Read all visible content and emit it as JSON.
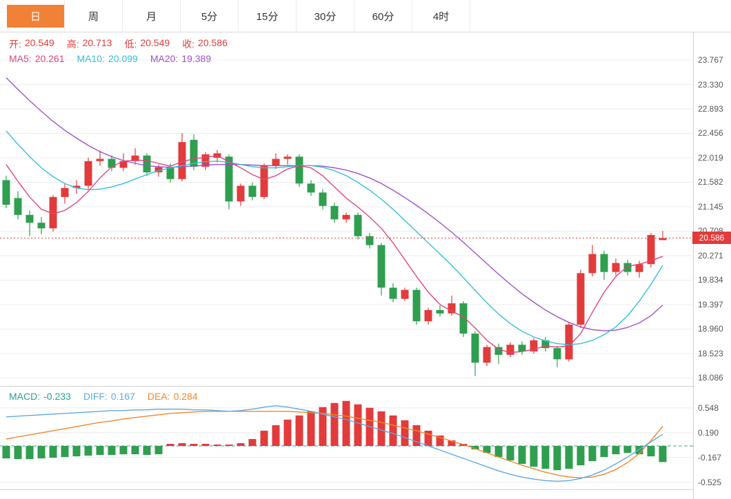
{
  "toolbar": {
    "tabs": [
      {
        "label": "日",
        "active": true
      },
      {
        "label": "周",
        "active": false
      },
      {
        "label": "月",
        "active": false
      },
      {
        "label": "5分",
        "active": false
      },
      {
        "label": "15分",
        "active": false
      },
      {
        "label": "30分",
        "active": false
      },
      {
        "label": "60分",
        "active": false
      },
      {
        "label": "4时",
        "active": false
      }
    ]
  },
  "main_legend": {
    "open_label": "开:",
    "open": "20.549",
    "high_label": "高:",
    "high": "20.713",
    "low_label": "低:",
    "low": "20.549",
    "close_label": "收:",
    "close": "20.586",
    "ma5_label": "MA5:",
    "ma5": "20.261",
    "ma10_label": "MA10:",
    "ma10": "20.099",
    "ma20_label": "MA20:",
    "ma20": "19.389"
  },
  "macd_legend": {
    "macd_label": "MACD:",
    "macd": "-0.233",
    "diff_label": "DIFF:",
    "diff": "0.167",
    "dea_label": "DEA:",
    "dea": "0.284"
  },
  "price_tag": "20.586",
  "colors": {
    "up": "#e23b3b",
    "down": "#2f9e4f",
    "ma5": "#e0457b",
    "ma10": "#33bfd8",
    "ma20": "#a052c8",
    "diff": "#5fa8e0",
    "dea": "#f2862b",
    "macd_text": "#26a08c",
    "accent": "#f08136",
    "grid": "#ececec",
    "frame": "#cfcfcf",
    "zero_line": "#3f9d9d",
    "axis_text": "#555555"
  },
  "chart_data": [
    {
      "type": "candlestick",
      "title": "daily-price-panel",
      "y_axis": {
        "ticks": [
          23.767,
          23.33,
          22.893,
          22.456,
          22.019,
          21.582,
          21.145,
          20.708,
          20.271,
          19.834,
          19.397,
          18.96,
          18.523,
          18.086
        ]
      },
      "current_price": 20.586,
      "last_ohlc": {
        "open": 20.549,
        "high": 20.713,
        "low": 20.549,
        "close": 20.586
      },
      "candles": [
        [
          21.62,
          21.7,
          21.12,
          21.18
        ],
        [
          21.3,
          21.42,
          20.92,
          21.0
        ],
        [
          21.0,
          21.08,
          20.62,
          20.86
        ],
        [
          20.86,
          20.96,
          20.65,
          20.76
        ],
        [
          20.76,
          21.35,
          20.7,
          21.32
        ],
        [
          21.32,
          21.55,
          21.2,
          21.48
        ],
        [
          21.48,
          21.62,
          21.38,
          21.52
        ],
        [
          21.52,
          22.02,
          21.46,
          21.96
        ],
        [
          21.96,
          22.15,
          21.88,
          22.0
        ],
        [
          22.0,
          22.06,
          21.78,
          21.84
        ],
        [
          21.84,
          22.1,
          21.78,
          21.96
        ],
        [
          21.96,
          22.19,
          21.9,
          22.06
        ],
        [
          22.06,
          22.1,
          21.7,
          21.76
        ],
        [
          21.76,
          21.9,
          21.68,
          21.85
        ],
        [
          21.85,
          21.92,
          21.58,
          21.64
        ],
        [
          21.64,
          22.46,
          21.6,
          22.3
        ],
        [
          22.34,
          22.44,
          21.8,
          21.86
        ],
        [
          21.86,
          22.12,
          21.8,
          22.08
        ],
        [
          22.02,
          22.16,
          21.94,
          22.1
        ],
        [
          22.04,
          22.08,
          21.1,
          21.24
        ],
        [
          21.24,
          21.56,
          21.16,
          21.52
        ],
        [
          21.52,
          21.58,
          21.26,
          21.32
        ],
        [
          21.32,
          21.92,
          21.28,
          21.88
        ],
        [
          21.88,
          22.1,
          21.82,
          22.0
        ],
        [
          22.0,
          22.08,
          21.9,
          22.04
        ],
        [
          22.04,
          22.08,
          21.5,
          21.56
        ],
        [
          21.56,
          21.62,
          21.34,
          21.4
        ],
        [
          21.4,
          21.46,
          21.1,
          21.16
        ],
        [
          21.16,
          21.22,
          20.86,
          20.92
        ],
        [
          20.92,
          21.04,
          20.86,
          21.0
        ],
        [
          21.0,
          21.04,
          20.56,
          20.62
        ],
        [
          20.62,
          20.68,
          20.4,
          20.46
        ],
        [
          20.46,
          20.5,
          19.56,
          19.7
        ],
        [
          19.7,
          19.78,
          19.44,
          19.5
        ],
        [
          19.5,
          19.7,
          19.46,
          19.66
        ],
        [
          19.66,
          19.7,
          19.04,
          19.1
        ],
        [
          19.1,
          19.34,
          19.04,
          19.3
        ],
        [
          19.3,
          19.38,
          19.18,
          19.24
        ],
        [
          19.24,
          19.56,
          19.2,
          19.42
        ],
        [
          19.42,
          19.46,
          18.82,
          18.88
        ],
        [
          18.88,
          18.92,
          18.12,
          18.36
        ],
        [
          18.36,
          18.68,
          18.3,
          18.64
        ],
        [
          18.64,
          18.7,
          18.34,
          18.5
        ],
        [
          18.5,
          18.72,
          18.46,
          18.68
        ],
        [
          18.68,
          18.74,
          18.5,
          18.56
        ],
        [
          18.56,
          18.8,
          18.52,
          18.76
        ],
        [
          18.76,
          18.82,
          18.56,
          18.62
        ],
        [
          18.62,
          18.66,
          18.28,
          18.42
        ],
        [
          18.42,
          19.08,
          18.38,
          19.04
        ],
        [
          19.04,
          20.02,
          18.98,
          19.96
        ],
        [
          19.96,
          20.46,
          19.9,
          20.3
        ],
        [
          20.3,
          20.36,
          19.84,
          19.98
        ],
        [
          19.98,
          20.22,
          19.92,
          20.14
        ],
        [
          20.14,
          20.2,
          19.92,
          19.98
        ],
        [
          19.98,
          20.18,
          19.88,
          20.12
        ],
        [
          20.12,
          20.68,
          20.06,
          20.64
        ],
        [
          20.549,
          20.713,
          20.549,
          20.586
        ]
      ],
      "ma5": [
        21.9,
        21.6,
        21.32,
        21.1,
        21.02,
        21.08,
        21.22,
        21.42,
        21.66,
        21.86,
        21.96,
        21.98,
        21.97,
        21.92,
        21.87,
        21.95,
        22.0,
        22.03,
        22.06,
        21.95,
        21.84,
        21.72,
        21.63,
        21.7,
        21.82,
        21.88,
        21.84,
        21.7,
        21.5,
        21.3,
        21.14,
        20.96,
        20.76,
        20.5,
        20.2,
        19.9,
        19.62,
        19.4,
        19.28,
        19.18,
        18.98,
        18.76,
        18.6,
        18.54,
        18.56,
        18.6,
        18.66,
        18.64,
        18.66,
        18.88,
        19.26,
        19.62,
        19.9,
        20.08,
        20.12,
        20.18,
        20.261
      ],
      "ma10": [
        22.5,
        22.26,
        22.04,
        21.84,
        21.68,
        21.56,
        21.48,
        21.45,
        21.46,
        21.5,
        21.56,
        21.64,
        21.72,
        21.79,
        21.84,
        21.88,
        21.92,
        21.95,
        21.96,
        21.94,
        21.9,
        21.86,
        21.84,
        21.84,
        21.86,
        21.88,
        21.88,
        21.85,
        21.79,
        21.7,
        21.58,
        21.44,
        21.28,
        21.1,
        20.9,
        20.7,
        20.5,
        20.3,
        20.1,
        19.88,
        19.65,
        19.43,
        19.23,
        19.06,
        18.92,
        18.82,
        18.75,
        18.7,
        18.68,
        18.7,
        18.76,
        18.86,
        19.0,
        19.2,
        19.46,
        19.76,
        20.099
      ],
      "ma20": [
        23.45,
        23.24,
        23.04,
        22.85,
        22.67,
        22.51,
        22.37,
        22.24,
        22.13,
        22.04,
        21.97,
        21.92,
        21.88,
        21.86,
        21.85,
        21.86,
        21.87,
        21.89,
        21.9,
        21.9,
        21.9,
        21.89,
        21.88,
        21.88,
        21.88,
        21.88,
        21.88,
        21.87,
        21.84,
        21.8,
        21.74,
        21.66,
        21.56,
        21.44,
        21.31,
        21.17,
        21.02,
        20.86,
        20.69,
        20.51,
        20.32,
        20.13,
        19.94,
        19.76,
        19.59,
        19.44,
        19.3,
        19.18,
        19.08,
        19.0,
        18.95,
        18.93,
        18.94,
        18.99,
        19.07,
        19.2,
        19.389
      ]
    },
    {
      "type": "bar",
      "title": "macd-panel",
      "y_axis": {
        "ticks": [
          0.548,
          0.19,
          -0.167,
          -0.525
        ]
      },
      "current": {
        "macd": -0.233,
        "diff": 0.167,
        "dea": 0.284
      },
      "histogram": [
        -0.18,
        -0.19,
        -0.19,
        -0.18,
        -0.17,
        -0.16,
        -0.15,
        -0.14,
        -0.13,
        -0.13,
        -0.12,
        -0.12,
        -0.13,
        -0.12,
        0.03,
        0.04,
        0.03,
        0.03,
        0.02,
        0.02,
        0.04,
        0.1,
        0.22,
        0.3,
        0.38,
        0.44,
        0.5,
        0.56,
        0.62,
        0.65,
        0.6,
        0.55,
        0.5,
        0.44,
        0.37,
        0.3,
        0.22,
        0.15,
        0.08,
        0.03,
        -0.05,
        -0.1,
        -0.16,
        -0.21,
        -0.26,
        -0.3,
        -0.33,
        -0.35,
        -0.33,
        -0.28,
        -0.22,
        -0.16,
        -0.12,
        -0.1,
        -0.12,
        -0.15,
        -0.233
      ],
      "diff": [
        0.42,
        0.43,
        0.44,
        0.45,
        0.46,
        0.47,
        0.48,
        0.49,
        0.5,
        0.51,
        0.51,
        0.52,
        0.52,
        0.53,
        0.53,
        0.53,
        0.52,
        0.52,
        0.51,
        0.5,
        0.51,
        0.53,
        0.56,
        0.58,
        0.56,
        0.53,
        0.5,
        0.46,
        0.42,
        0.38,
        0.33,
        0.28,
        0.23,
        0.18,
        0.12,
        0.06,
        0.0,
        -0.06,
        -0.12,
        -0.18,
        -0.24,
        -0.3,
        -0.36,
        -0.41,
        -0.45,
        -0.48,
        -0.5,
        -0.51,
        -0.5,
        -0.47,
        -0.42,
        -0.35,
        -0.26,
        -0.16,
        -0.05,
        0.06,
        0.167
      ],
      "dea": [
        0.1,
        0.13,
        0.16,
        0.19,
        0.22,
        0.25,
        0.28,
        0.31,
        0.34,
        0.36,
        0.39,
        0.41,
        0.43,
        0.45,
        0.47,
        0.48,
        0.49,
        0.5,
        0.5,
        0.5,
        0.5,
        0.5,
        0.5,
        0.5,
        0.5,
        0.49,
        0.48,
        0.47,
        0.45,
        0.43,
        0.4,
        0.37,
        0.34,
        0.3,
        0.26,
        0.22,
        0.17,
        0.12,
        0.07,
        0.02,
        -0.04,
        -0.1,
        -0.16,
        -0.22,
        -0.28,
        -0.33,
        -0.38,
        -0.42,
        -0.45,
        -0.46,
        -0.45,
        -0.41,
        -0.34,
        -0.24,
        -0.11,
        0.08,
        0.284
      ]
    }
  ]
}
